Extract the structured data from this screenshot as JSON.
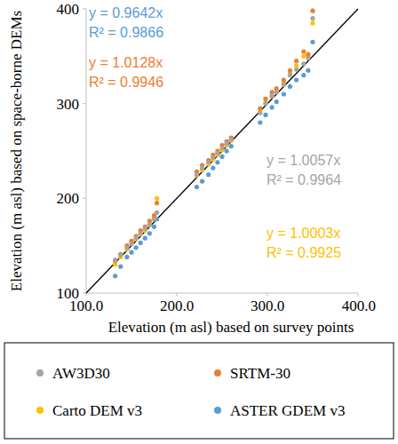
{
  "chart_data": {
    "type": "scatter",
    "x_label": "Elevation (m asl) based on survey points",
    "y_label": "Elevation (m asl) based on space-borne DEMs",
    "xlim": [
      100,
      400
    ],
    "ylim": [
      100,
      400
    ],
    "xticks": [
      {
        "value": 100,
        "label": "100.0"
      },
      {
        "value": 200,
        "label": "200.0"
      },
      {
        "value": 300,
        "label": "300.0"
      },
      {
        "value": 400,
        "label": "400.0"
      }
    ],
    "yticks": [
      100,
      200,
      300,
      400
    ],
    "grid": false,
    "legend": "bottom",
    "marker": "circle",
    "series": [
      {
        "name": "AW3D30",
        "color": "#a5a5a5",
        "annotation": [
          "y = 1.0057x",
          "R² = 0.9964"
        ],
        "x": [
          132,
          138,
          145,
          150,
          155,
          160,
          165,
          170,
          175,
          178,
          222,
          228,
          235,
          240,
          245,
          250,
          255,
          260,
          292,
          298,
          305,
          310,
          318,
          325,
          332,
          340,
          345,
          350
        ],
        "values": [
          135,
          140,
          148,
          152,
          158,
          163,
          168,
          172,
          178,
          185,
          225,
          232,
          238,
          243,
          248,
          253,
          258,
          262,
          290,
          300,
          308,
          312,
          320,
          330,
          336,
          342,
          348,
          390
        ]
      },
      {
        "name": "SRTM-30",
        "color": "#ed7d31",
        "annotation": [
          "y = 1.0128x",
          "R² = 0.9946"
        ],
        "x": [
          132,
          138,
          145,
          150,
          155,
          160,
          165,
          170,
          175,
          178,
          222,
          228,
          235,
          240,
          245,
          250,
          255,
          260,
          292,
          298,
          305,
          310,
          318,
          325,
          332,
          340,
          345,
          350
        ],
        "values": [
          134,
          141,
          150,
          155,
          160,
          166,
          170,
          176,
          182,
          195,
          228,
          235,
          240,
          246,
          250,
          256,
          260,
          264,
          295,
          305,
          312,
          316,
          325,
          335,
          345,
          355,
          352,
          398
        ]
      },
      {
        "name": "Carto DEM v3",
        "color": "#ffc000",
        "annotation": [
          "y = 1.0003x",
          "R² = 0.9925"
        ],
        "x": [
          132,
          138,
          145,
          150,
          155,
          160,
          165,
          170,
          175,
          178,
          222,
          228,
          235,
          240,
          245,
          250,
          255,
          260,
          292,
          298,
          305,
          310,
          318,
          325,
          332,
          340,
          345,
          350
        ],
        "values": [
          130,
          138,
          146,
          152,
          157,
          162,
          166,
          172,
          180,
          200,
          224,
          230,
          236,
          241,
          246,
          251,
          256,
          261,
          293,
          301,
          308,
          313,
          322,
          332,
          340,
          350,
          350,
          385
        ]
      },
      {
        "name": "ASTER GDEM v3",
        "color": "#5b9bd5",
        "annotation": [
          "y = 0.9642x",
          "R² = 0.9866"
        ],
        "x": [
          132,
          138,
          145,
          150,
          155,
          160,
          165,
          170,
          175,
          178,
          222,
          228,
          235,
          240,
          245,
          250,
          255,
          260,
          292,
          298,
          305,
          310,
          318,
          325,
          332,
          340,
          345,
          350
        ],
        "values": [
          118,
          128,
          138,
          143,
          148,
          153,
          158,
          163,
          170,
          178,
          212,
          218,
          225,
          232,
          238,
          244,
          250,
          255,
          280,
          288,
          296,
          302,
          310,
          318,
          325,
          330,
          335,
          365
        ]
      }
    ]
  }
}
